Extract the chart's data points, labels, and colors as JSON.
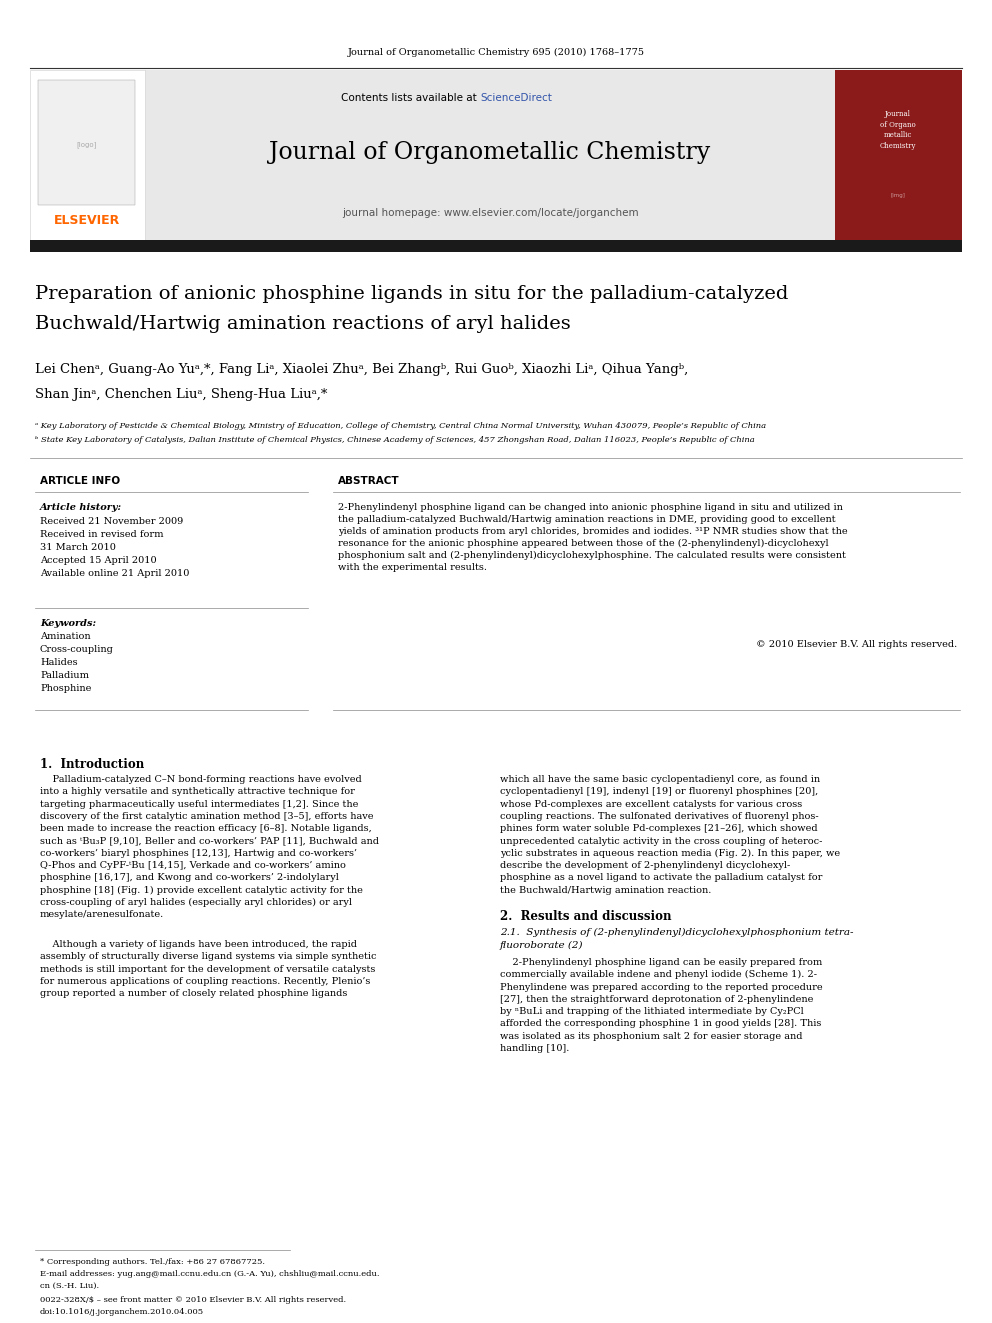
{
  "page_width": 9.92,
  "page_height": 13.23,
  "bg_color": "#ffffff",
  "header_journal_text": "Journal of Organometallic Chemistry 695 (2010) 1768–1775",
  "header_sciencedirect_color": "#3355aa",
  "journal_title": "Journal of Organometallic Chemistry",
  "journal_homepage": "journal homepage: www.elsevier.com/locate/jorganchem",
  "header_bg_color": "#e8e8e8",
  "elsevier_color": "#ff6600",
  "dark_bar_color": "#1a1a1a",
  "article_title_line1": "Preparation of anionic phosphine ligands in situ for the palladium-catalyzed",
  "article_title_line2": "Buchwald/Hartwig amination reactions of aryl halides",
  "authors_line1": "Lei Chenᵃ, Guang-Ao Yuᵃ,*, Fang Liᵃ, Xiaolei Zhuᵃ, Bei Zhangᵇ, Rui Guoᵇ, Xiaozhi Liᵃ, Qihua Yangᵇ,",
  "authors_line2": "Shan Jinᵃ, Chenchen Liuᵃ, Sheng-Hua Liuᵃ,*",
  "affil1": "ᵃ Key Laboratory of Pesticide & Chemical Biology, Ministry of Education, College of Chemistry, Central China Normal University, Wuhan 430079, People’s Republic of China",
  "affil2": "ᵇ State Key Laboratory of Catalysis, Dalian Institute of Chemical Physics, Chinese Academy of Sciences, 457 Zhongshan Road, Dalian 116023, People’s Republic of China",
  "article_info_header": "ARTICLE INFO",
  "abstract_header": "ABSTRACT",
  "article_history_label": "Article history:",
  "received1": "Received 21 November 2009",
  "received2": "Received in revised form",
  "received2b": "31 March 2010",
  "accepted": "Accepted 15 April 2010",
  "available": "Available online 21 April 2010",
  "keywords_label": "Keywords:",
  "keywords": [
    "Amination",
    "Cross-coupling",
    "Halides",
    "Palladium",
    "Phosphine"
  ],
  "abstract_text_lines": [
    "2-Phenylindenyl phosphine ligand can be changed into anionic phosphine ligand in situ and utilized in",
    "the palladium-catalyzed Buchwald/Hartwig amination reactions in DME, providing good to excellent",
    "yields of amination products from aryl chlorides, bromides and iodides. ³¹P NMR studies show that the",
    "resonance for the anionic phosphine appeared between those of the (2-phenylindenyl)-dicyclohexyl",
    "phosphonium salt and (2-phenylindenyl)dicyclohexylphosphine. The calculated results were consistent",
    "with the experimental results."
  ],
  "copyright": "© 2010 Elsevier B.V. All rights reserved.",
  "section1_header": "1.  Introduction",
  "intro_col1_lines": [
    "    Palladium-catalyzed C–N bond-forming reactions have evolved",
    "into a highly versatile and synthetically attractive technique for",
    "targeting pharmaceutically useful intermediates [1,2]. Since the",
    "discovery of the first catalytic amination method [3–5], efforts have",
    "been made to increase the reaction efficacy [6–8]. Notable ligands,",
    "such as ᵗBu₃P [9,10], Beller and co-workers’ PAP [11], Buchwald and",
    "co-workers’ biaryl phosphines [12,13], Hartwig and co-workers’",
    "Q-Phos and CyPF-ᵗBu [14,15], Verkade and co-workers’ amino",
    "phosphine [16,17], and Kwong and co-workers’ 2-indolylaryl",
    "phosphine [18] (Fig. 1) provide excellent catalytic activity for the",
    "cross-coupling of aryl halides (especially aryl chlorides) or aryl",
    "mesylate/arenesulfonate."
  ],
  "intro_col1b_lines": [
    "    Although a variety of ligands have been introduced, the rapid",
    "assembly of structurally diverse ligand systems via simple synthetic",
    "methods is still important for the development of versatile catalysts",
    "for numerous applications of coupling reactions. Recently, Plenio’s",
    "group reported a number of closely related phosphine ligands"
  ],
  "intro_col2_lines": [
    "which all have the same basic cyclopentadienyl core, as found in",
    "cyclopentadienyl [19], indenyl [19] or fluorenyl phosphines [20],",
    "whose Pd-complexes are excellent catalysts for various cross",
    "coupling reactions. The sulfonated derivatives of fluorenyl phos-",
    "phines form water soluble Pd-complexes [21–26], which showed",
    "unprecedented catalytic activity in the cross coupling of heteroc-",
    "yclic substrates in aqueous reaction media (Fig. 2). In this paper, we",
    "describe the development of 2-phenylindenyl dicyclohexyl-",
    "phosphine as a novel ligand to activate the palladium catalyst for",
    "the Buchwald/Hartwig amination reaction."
  ],
  "section2_header": "2.  Results and discussion",
  "section21_line1": "2.1.  Synthesis of (2-phenylindenyl)dicyclohexylphosphonium tetra-",
  "section21_line2": "fluoroborate (2)",
  "section21_lines": [
    "    2-Phenylindenyl phosphine ligand can be easily prepared from",
    "commercially available indene and phenyl iodide (Scheme 1). 2-",
    "Phenylindene was prepared according to the reported procedure",
    "[27], then the straightforward deprotonation of 2-phenylindene",
    "by ⁿBuLi and trapping of the lithiated intermediate by Cy₂PCl",
    "afforded the corresponding phosphine 1 in good yields [28]. This",
    "was isolated as its phosphonium salt 2 for easier storage and",
    "handling [10]."
  ],
  "footnote_star": "* Corresponding authors. Tel./fax: +86 27 67867725.",
  "footnote_email": "E-mail addresses: yug.ang@mail.ccnu.edu.cn (G.-A. Yu), chshliu@mail.ccnu.edu.",
  "footnote_email2": "cn (S.-H. Liu).",
  "footnote_issn": "0022-328X/$ – see front matter © 2010 Elsevier B.V. All rights reserved.",
  "footnote_doi": "doi:10.1016/j.jorganchem.2010.04.005",
  "ref_color": "#3355aa",
  "line_color": "#888888",
  "dark_line_color": "#333333"
}
